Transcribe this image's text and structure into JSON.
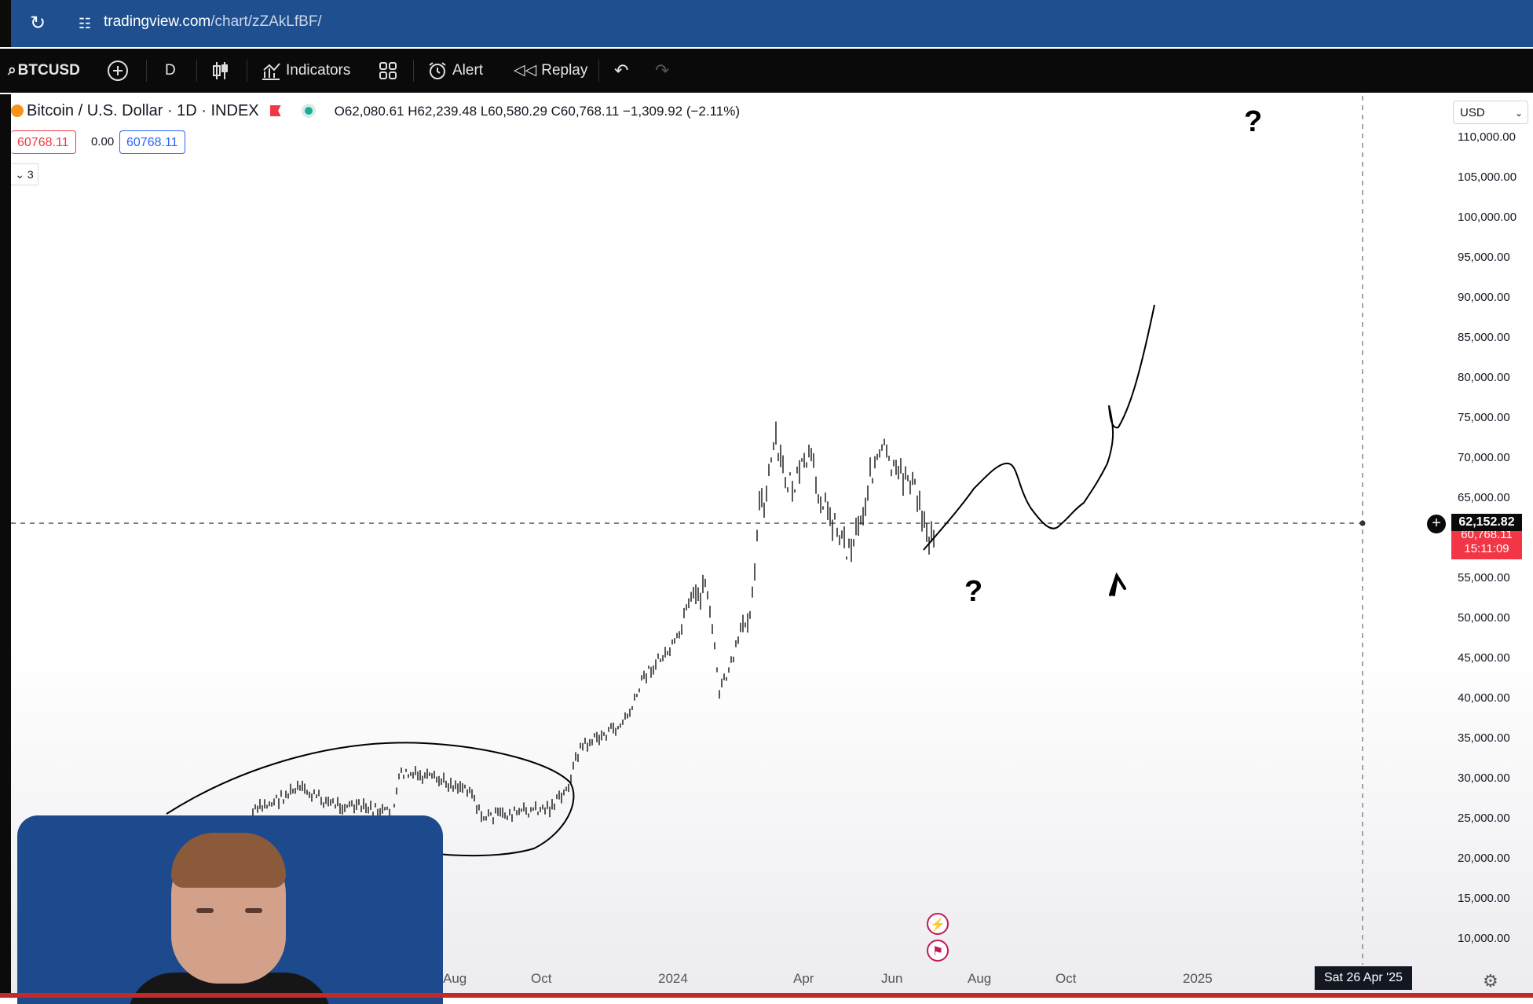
{
  "browser": {
    "url_host": "tradingview.com",
    "url_path": "/chart/zZAkLfBF/"
  },
  "toolbar": {
    "symbol": "BTCUSD",
    "interval": "D",
    "indicators_label": "Indicators",
    "alert_label": "Alert",
    "replay_label": "Replay"
  },
  "legend": {
    "title": "Bitcoin / U.S. Dollar · 1D · INDEX",
    "ohlc": "O62,080.61 H62,239.48 L60,580.29 C60,768.11 −1,309.92 (−2.11%)",
    "sell_price": "60768.11",
    "spread": "0.00",
    "buy_price": "60768.11",
    "indicator_count": "3"
  },
  "price_axis": {
    "currency": "USD",
    "labels": [
      "110,000.00",
      "105,000.00",
      "100,000.00",
      "95,000.00",
      "90,000.00",
      "85,000.00",
      "80,000.00",
      "75,000.00",
      "70,000.00",
      "65,000.00",
      "55,000.00",
      "50,000.00",
      "45,000.00",
      "40,000.00",
      "35,000.00",
      "30,000.00",
      "25,000.00",
      "20,000.00",
      "15,000.00",
      "10,000.00"
    ],
    "crosshair_price": "62,152.82",
    "last_price_partial": "60,768.11",
    "countdown": "15:11:09"
  },
  "time_axis": {
    "labels": [
      "Aug",
      "Oct",
      "2024",
      "Apr",
      "Jun",
      "Aug",
      "Oct",
      "2025"
    ],
    "crosshair_date": "Sat 26 Apr '25"
  },
  "annotations": {
    "question_marks": [
      "?",
      "?"
    ]
  },
  "colors": {
    "browser_bar": "#1f4f8f",
    "toolbar": "#0a0a0a",
    "sell": "#f23645",
    "buy": "#2962ff",
    "up": "#22ab94"
  }
}
